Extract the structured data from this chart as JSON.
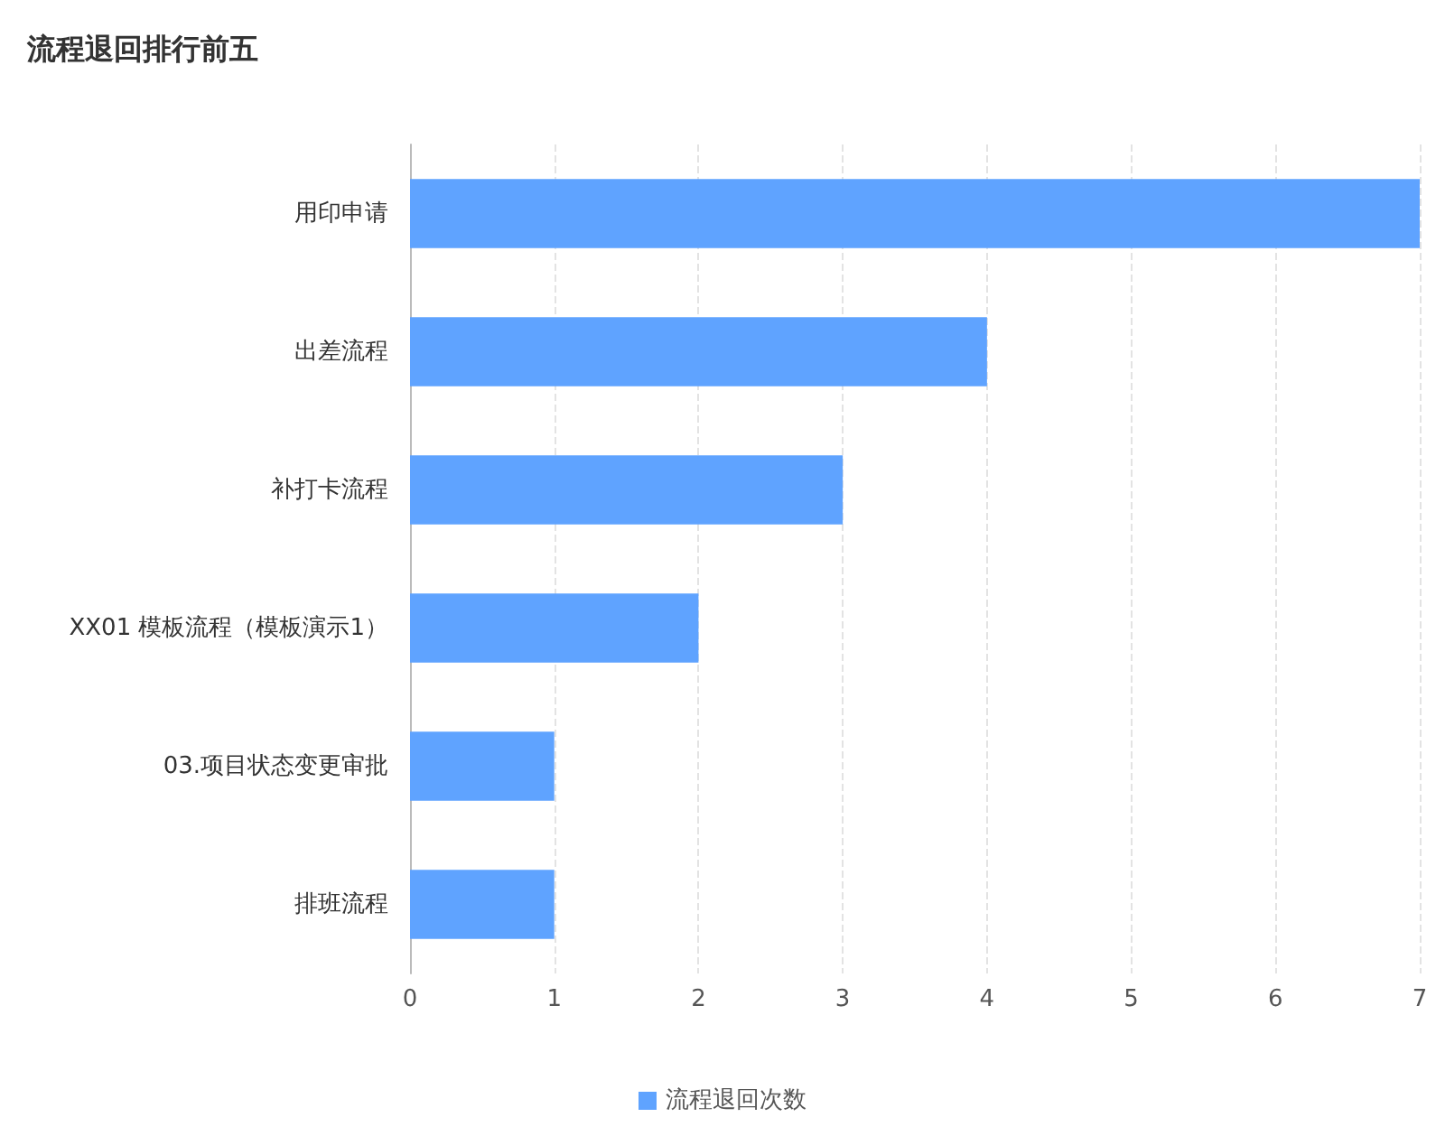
{
  "chart_data": {
    "type": "bar",
    "title": "流程退回排行前五",
    "orientation": "horizontal",
    "categories": [
      "用印申请",
      "出差流程",
      "补打卡流程",
      "XX01 模板流程（模板演示1）",
      "03.项目状态变更审批",
      "排班流程"
    ],
    "series": [
      {
        "name": "流程退回次数",
        "color": "#5fa3ff",
        "values": [
          7,
          4,
          3,
          2,
          1,
          1
        ]
      }
    ],
    "xlim": [
      0,
      7
    ],
    "xticks": [
      0,
      1,
      2,
      3,
      4,
      5,
      6,
      7
    ],
    "grid": "x",
    "legend": "bottom"
  }
}
